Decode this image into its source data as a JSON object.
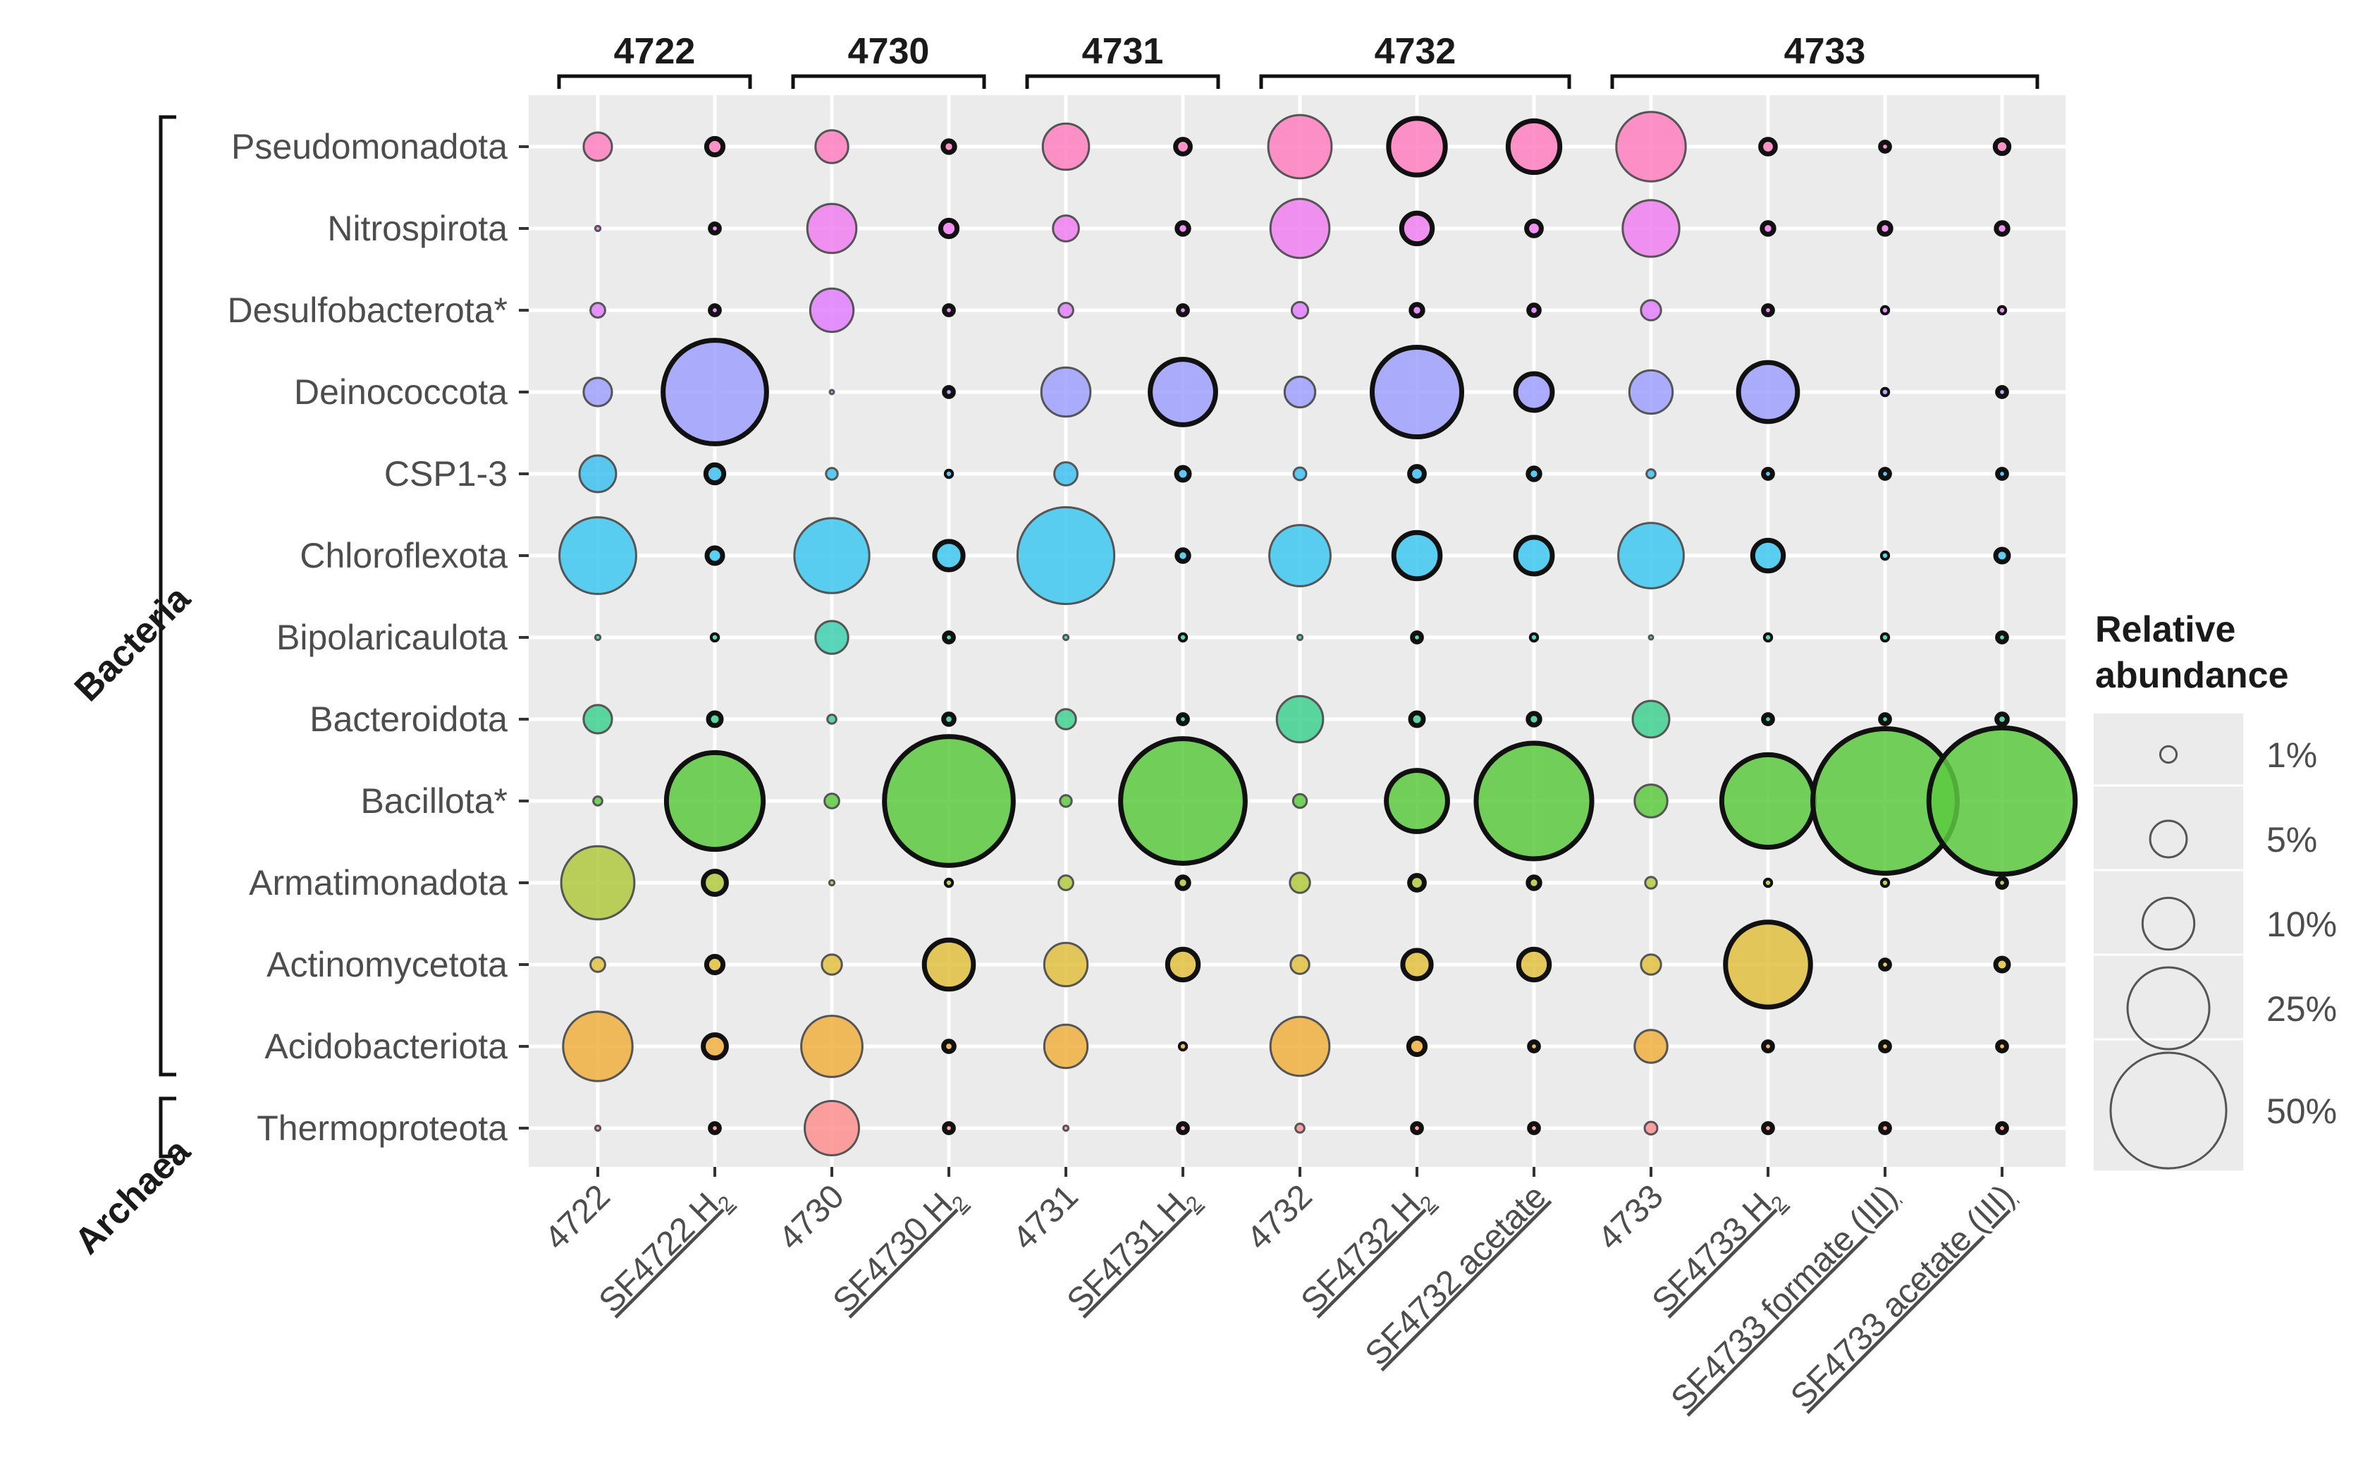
{
  "chart_data": {
    "type": "scatter",
    "subtype": "bubble",
    "title": "",
    "xlabel": "",
    "ylabel": "",
    "groups": [
      {
        "label": "4722",
        "first": 0,
        "last": 1
      },
      {
        "label": "4730",
        "first": 2,
        "last": 3
      },
      {
        "label": "4731",
        "first": 4,
        "last": 5
      },
      {
        "label": "4732",
        "first": 6,
        "last": 8
      },
      {
        "label": "4733",
        "first": 9,
        "last": 12
      }
    ],
    "samples": [
      {
        "name": "4722",
        "enrichment": false,
        "label": "4722"
      },
      {
        "name": "SF4722 H2",
        "enrichment": true,
        "label": "SF4722 H",
        "sub": "2"
      },
      {
        "name": "4730",
        "enrichment": false,
        "label": "4730"
      },
      {
        "name": "SF4730 H2",
        "enrichment": true,
        "label": "SF4730 H",
        "sub": "2"
      },
      {
        "name": "4731",
        "enrichment": false,
        "label": "4731"
      },
      {
        "name": "SF4731 H2",
        "enrichment": true,
        "label": "SF4731 H",
        "sub": "2"
      },
      {
        "name": "4732",
        "enrichment": false,
        "label": "4732"
      },
      {
        "name": "SF4732 H2",
        "enrichment": true,
        "label": "SF4732 H",
        "sub": "2"
      },
      {
        "name": "SF4732 acetate",
        "enrichment": true,
        "label": "SF4732 acetate"
      },
      {
        "name": "4733",
        "enrichment": false,
        "label": "4733"
      },
      {
        "name": "SF4733 H2",
        "enrichment": true,
        "label": "SF4733 H",
        "sub": "2"
      },
      {
        "name": "SF4733 formate (III)",
        "enrichment": true,
        "label": "SF4733 formate (III)"
      },
      {
        "name": "SF4733 acetate (III)",
        "enrichment": true,
        "label": "SF4733 acetate (III)"
      }
    ],
    "domains": [
      {
        "label": "Bacteria",
        "first": 0,
        "last": 11
      },
      {
        "label": "Archaea",
        "first": 12,
        "last": 12
      }
    ],
    "phyla": [
      {
        "name": "Pseudomonadota",
        "color": "#ff7fbf",
        "values": [
          3,
          1,
          4,
          0.5,
          8,
          0.8,
          15,
          12,
          10,
          18,
          0.8,
          0.3,
          0.7
        ]
      },
      {
        "name": "Nitrospirota",
        "color": "#f07ff0",
        "values": [
          0.1,
          0.3,
          9,
          1,
          2.5,
          0.5,
          13,
          3.5,
          0.8,
          12,
          0.5,
          0.5,
          0.5
        ]
      },
      {
        "name": "Desulfobacterota*",
        "color": "#e07fff",
        "values": [
          0.8,
          0.3,
          7,
          0.3,
          0.8,
          0.3,
          1,
          0.5,
          0.4,
          1.5,
          0.3,
          0.2,
          0.2
        ]
      },
      {
        "name": "Deinococcota",
        "color": "#a0a0ff",
        "values": [
          3,
          40,
          0.05,
          0.3,
          9,
          16,
          3.5,
          30,
          5,
          7,
          13,
          0.2,
          0.3
        ]
      },
      {
        "name": "CSP1-3",
        "color": "#3fc0f0",
        "values": [
          5,
          1.2,
          0.5,
          0.2,
          2,
          0.6,
          0.6,
          0.8,
          0.5,
          0.3,
          0.3,
          0.3,
          0.3
        ]
      },
      {
        "name": "Chloroflexota",
        "color": "#3fc8f0",
        "values": [
          22,
          0.9,
          21,
          3,
          35,
          0.5,
          14,
          8,
          5,
          16,
          3.5,
          0.2,
          0.6
        ]
      },
      {
        "name": "Bipolaricaulota",
        "color": "#3fd0b0",
        "values": [
          0.1,
          0.2,
          4,
          0.3,
          0.1,
          0.2,
          0.1,
          0.3,
          0.2,
          0.05,
          0.2,
          0.2,
          0.3
        ]
      },
      {
        "name": "Bacteroidota",
        "color": "#3fd08f",
        "values": [
          3,
          0.6,
          0.3,
          0.4,
          1.5,
          0.3,
          8,
          0.6,
          0.5,
          5,
          0.3,
          0.3,
          0.4
        ]
      },
      {
        "name": "Bacillota*",
        "color": "#5cc93f",
        "values": [
          0.3,
          35,
          0.8,
          62,
          0.5,
          58,
          0.7,
          14,
          50,
          4,
          32,
          78,
          80
        ]
      },
      {
        "name": "Armatimonadota",
        "color": "#b0c83f",
        "values": [
          20,
          2,
          0.1,
          0.2,
          0.8,
          0.5,
          1.5,
          0.8,
          0.5,
          0.5,
          0.2,
          0.2,
          0.3
        ]
      },
      {
        "name": "Actinomycetota",
        "color": "#e0c03f",
        "values": [
          0.8,
          1,
          1.5,
          9,
          7,
          3.5,
          1.3,
          3,
          3.5,
          1.5,
          27,
          0.3,
          0.6
        ]
      },
      {
        "name": "Acidobacteriota",
        "color": "#f0b03f",
        "values": [
          18,
          2,
          14,
          0.4,
          7,
          0.2,
          13,
          1,
          0.3,
          4,
          0.3,
          0.3,
          0.3
        ]
      },
      {
        "name": "Thermoproteota",
        "color": "#ff8f8f",
        "values": [
          0.1,
          0.3,
          11,
          0.3,
          0.1,
          0.3,
          0.3,
          0.3,
          0.3,
          0.6,
          0.3,
          0.3,
          0.3
        ]
      }
    ],
    "size_legend": {
      "title_line1": "Relative",
      "title_line2": "abundance",
      "entries": [
        {
          "label": "1%",
          "value": 1
        },
        {
          "label": "5%",
          "value": 5
        },
        {
          "label": "10%",
          "value": 10
        },
        {
          "label": "25%",
          "value": 25
        },
        {
          "label": "50%",
          "value": 50
        }
      ],
      "position": "right"
    },
    "grid": true,
    "panel_background": "#ebebeb",
    "enrichment_outline_color": "#111111",
    "sample_outline_color": "#555555"
  }
}
